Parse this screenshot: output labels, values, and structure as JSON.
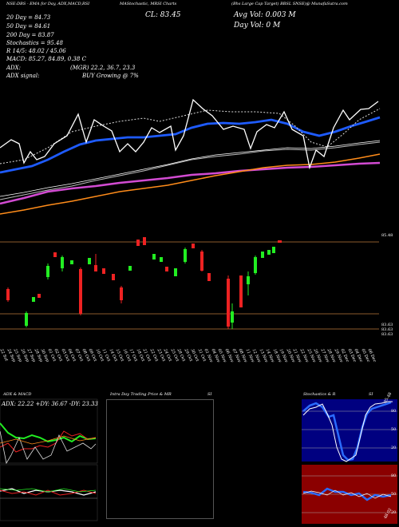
{
  "header": {
    "top_left": "NSE:DBS - EMA for Day, ADX,MACD,RSI",
    "top_center": "MAStochastic, MRSI Charts",
    "symbol_info": "(Bhs Large Cap Target) BBSL SNSE)@ MunafaSutra.com",
    "cl_label": "CL: 83.45",
    "avg_vol": "Avg Vol: 0.003 M",
    "day_vol": "Day Vol: 0  M",
    "ema_20_label": "20 Day = 84.73",
    "ema_50_label": "50 Day = 84.61",
    "ema_200_label": "200 Day = 83.87",
    "stochastics_label": "Stochastics = 95.48",
    "r_label": "R 14/5: 48.02 / 45.06",
    "macd_label": "MACD: 85.27, 84.89, 0.38  C",
    "adx_label": "ADX:",
    "adx_mgr": "(MGR) 22.2, 36.7, 23.3",
    "adx_signal_label": "ADX signal:",
    "adx_signal_value": "BUY Growing @ 7%"
  },
  "price_axis": {
    "upper_label": "85.48",
    "lower_label_1": "83.63",
    "lower_label_2": "83.63",
    "lower_label_3": "83.63"
  },
  "date_labels": [
    "22 Sat",
    "24 Sep",
    "25 Sep",
    "26 Sep",
    "27 Sep",
    "28 Sep",
    "30 Sep",
    "01 Oct",
    "02 Oct",
    "03 Oct",
    "04 Oct",
    "07 Oct",
    "08 Oct",
    "09 Oct",
    "10 Oct",
    "11 Oct",
    "14 Oct",
    "15 Oct",
    "16 Oct",
    "17 Oct",
    "18 Oct",
    "21 Oct",
    "22 Oct",
    "23 Oct",
    "24 Oct",
    "25 Oct",
    "28 Oct",
    "29 Oct",
    "30 Oct",
    "31 Oct",
    "01 Nov",
    "04 Nov",
    "05 Nov",
    "06 Nov",
    "07 Nov",
    "08 Nov",
    "11 Nov",
    "12 Nov",
    "13 Nov",
    "14 Nov",
    "18 Nov",
    "19 Nov",
    "20 Nov",
    "21 Nov",
    "22 Nov",
    "25 Nov",
    "26 Nov",
    "27 Nov",
    "28 Nov",
    "29 Nov",
    "02 Dec",
    "03 Dec",
    "04 Dec",
    "05 Dec",
    "06 Dec"
  ],
  "panels": {
    "adx_title": "ADX  & MACD",
    "adx_values": "ADX: 22.22  +DY: 36.67 -DY: 23.33",
    "intraday_title": "Intra  Day Trading Price  & MR",
    "intraday_si": "SI",
    "stoch_title": "Stochastics & R",
    "stoch_si": "SI",
    "stoch_levels": [
      "80",
      "50",
      "20"
    ],
    "stoch_value": "95.48",
    "rsi_levels": [
      "80",
      "50",
      "20"
    ],
    "rsi_value": "48.02"
  },
  "colors": {
    "background": "#000000",
    "ema_fast": "#1e5bff",
    "ema_slow": "#ff8c1a",
    "ema_magenta": "#d24bd2",
    "price_line": "#ffffff",
    "candle_up": "#22ee22",
    "candle_down": "#ee2222",
    "rsi_panel": "#8b0000",
    "stoch_panel": "#000080"
  }
}
